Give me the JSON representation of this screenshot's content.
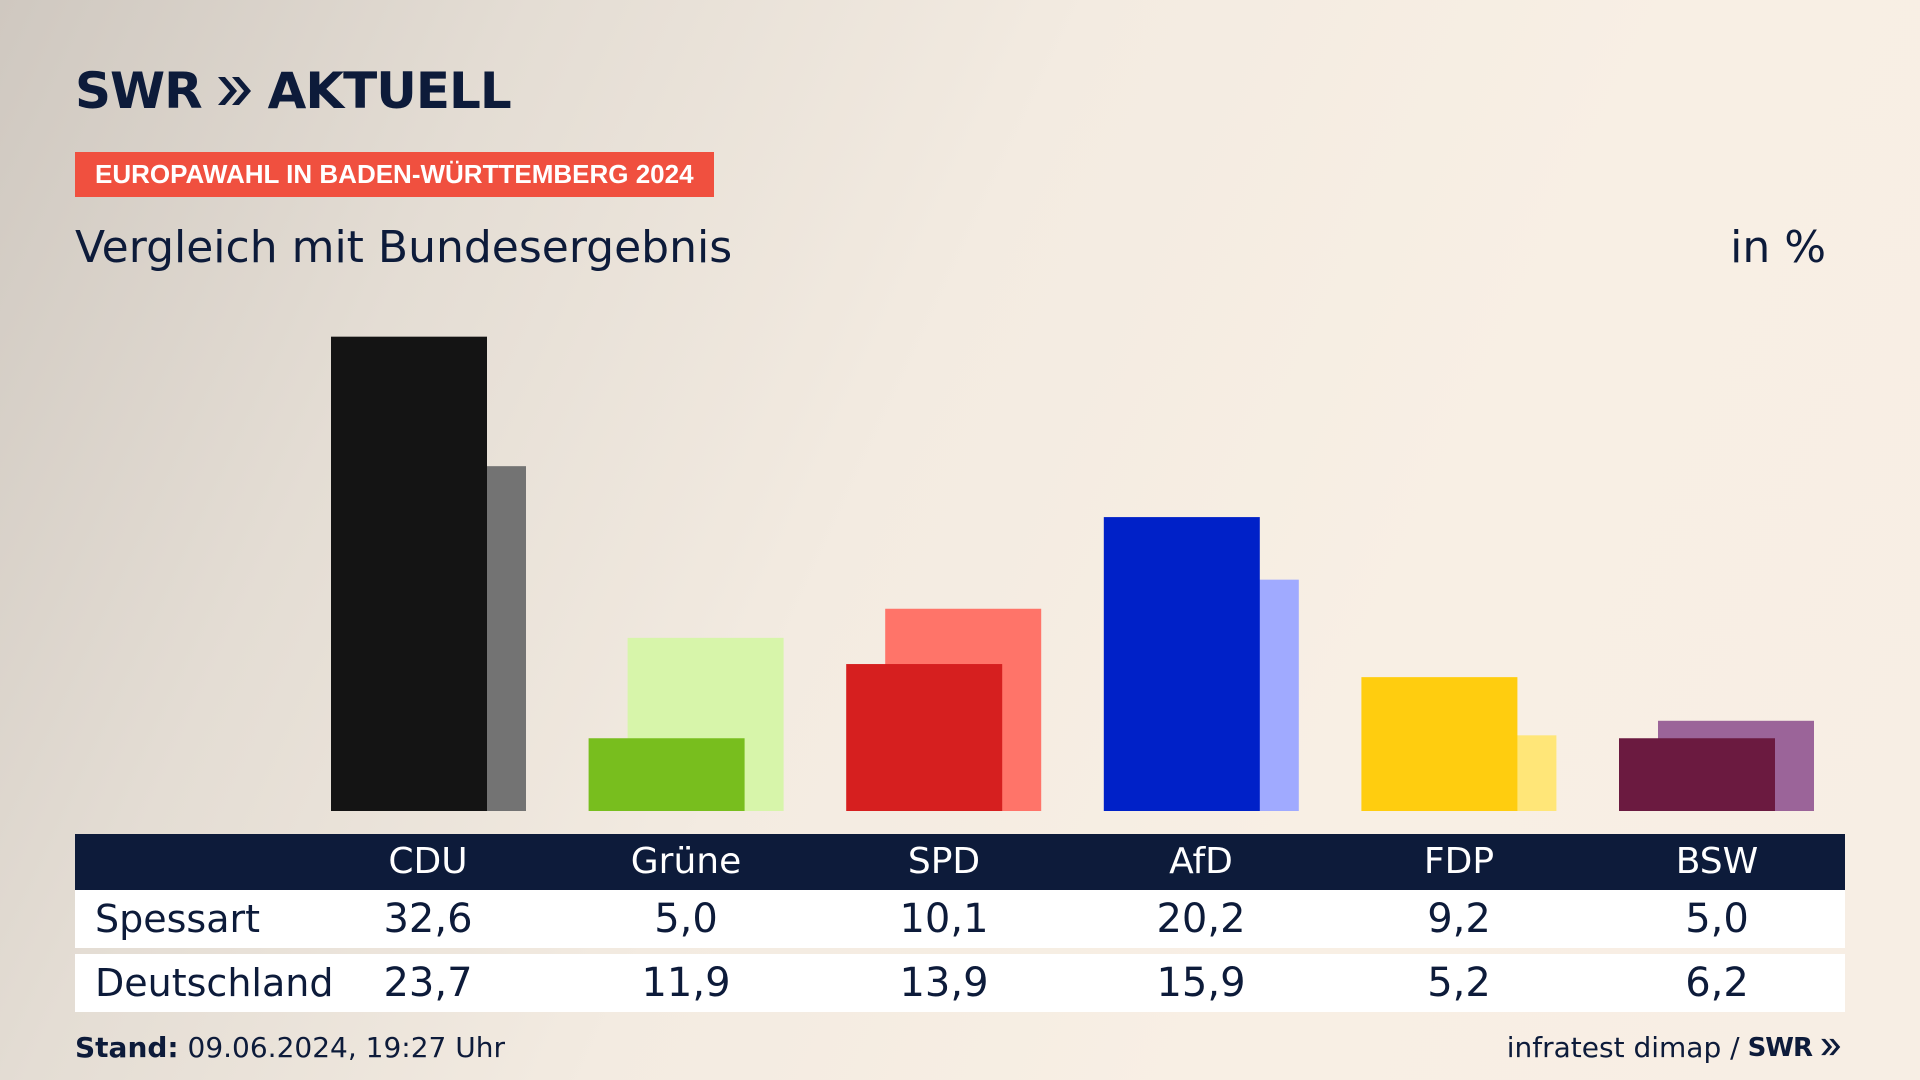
{
  "header": {
    "logo_swr": "SWR",
    "logo_aktuell": "AKTUELL",
    "badge": "EUROPAWAHL IN BADEN-WÜRTTEMBERG 2024",
    "subtitle": "Vergleich mit Bundesergebnis",
    "unit": "in %"
  },
  "chart_data": {
    "type": "bar",
    "title": "Vergleich mit Bundesergebnis",
    "ylabel": "in %",
    "ylim": [
      0,
      35
    ],
    "grid": false,
    "categories": [
      "CDU",
      "Grüne",
      "SPD",
      "AfD",
      "FDP",
      "BSW"
    ],
    "series": [
      {
        "name": "Spessart",
        "values": [
          32.6,
          5.0,
          10.1,
          20.2,
          9.2,
          5.0
        ],
        "colors": [
          "#141414",
          "#78be1e",
          "#d61f1f",
          "#0021c8",
          "#ffcd0f",
          "#6b1a40"
        ]
      },
      {
        "name": "Deutschland",
        "values": [
          23.7,
          11.9,
          13.9,
          15.9,
          5.2,
          6.2
        ],
        "colors": [
          "#737373",
          "#d7f5aa",
          "#ff7469",
          "#a0aaff",
          "#ffe678",
          "#9b6499"
        ]
      }
    ]
  },
  "table": {
    "headers": [
      "CDU",
      "Grüne",
      "SPD",
      "AfD",
      "FDP",
      "BSW"
    ],
    "rows": [
      {
        "label": "Spessart",
        "values": [
          "32,6",
          "5,0",
          "10,1",
          "20,2",
          "9,2",
          "5,0"
        ]
      },
      {
        "label": "Deutschland",
        "values": [
          "23,7",
          "11,9",
          "13,9",
          "15,9",
          "5,2",
          "6,2"
        ]
      }
    ]
  },
  "footer": {
    "stand_label": "Stand:",
    "stand_value": " 09.06.2024, 19:27 Uhr",
    "source": "infratest dimap /",
    "brand": "SWR"
  }
}
